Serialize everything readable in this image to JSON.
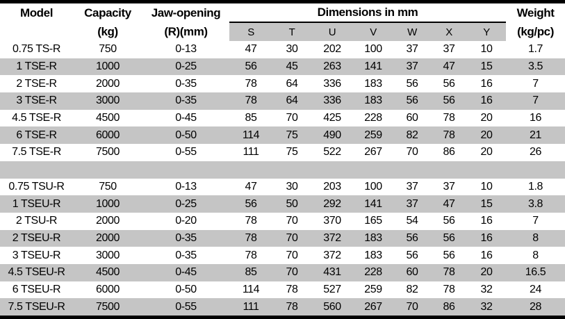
{
  "colors": {
    "stripe_gray": "#c5c5c5",
    "border_black": "#000000"
  },
  "table": {
    "headers": {
      "model": "Model",
      "capacity_line1": "Capacity",
      "capacity_line2": "(kg)",
      "jaw_line1": "Jaw-opening",
      "jaw_line2": "(R)(mm)",
      "dimensions_group": "Dimensions in mm",
      "dimension_columns": [
        "S",
        "T",
        "U",
        "V",
        "W",
        "X",
        "Y"
      ],
      "weight_line1": "Weight",
      "weight_line2": "(kg/pc)"
    },
    "rows": [
      [
        "0.75 TS-R",
        "750",
        "0-13",
        "47",
        "30",
        "202",
        "100",
        "37",
        "37",
        "10",
        "1.7"
      ],
      [
        "1 TSE-R",
        "1000",
        "0-25",
        "56",
        "45",
        "263",
        "141",
        "37",
        "47",
        "15",
        "3.5"
      ],
      [
        "2 TSE-R",
        "2000",
        "0-35",
        "78",
        "64",
        "336",
        "183",
        "56",
        "56",
        "16",
        "7"
      ],
      [
        "3 TSE-R",
        "3000",
        "0-35",
        "78",
        "64",
        "336",
        "183",
        "56",
        "56",
        "16",
        "7"
      ],
      [
        "4.5 TSE-R",
        "4500",
        "0-45",
        "85",
        "70",
        "425",
        "228",
        "60",
        "78",
        "20",
        "16"
      ],
      [
        "6 TSE-R",
        "6000",
        "0-50",
        "114",
        "75",
        "490",
        "259",
        "82",
        "78",
        "20",
        "21"
      ],
      [
        "7.5 TSE-R",
        "7500",
        "0-55",
        "111",
        "75",
        "522",
        "267",
        "70",
        "86",
        "20",
        "26"
      ],
      [
        "",
        "",
        "",
        "",
        "",
        "",
        "",
        "",
        "",
        "",
        ""
      ],
      [
        "0.75 TSU-R",
        "750",
        "0-13",
        "47",
        "30",
        "203",
        "100",
        "37",
        "37",
        "10",
        "1.8"
      ],
      [
        "1 TSEU-R",
        "1000",
        "0-25",
        "56",
        "50",
        "292",
        "141",
        "37",
        "47",
        "15",
        "3.8"
      ],
      [
        "2 TSU-R",
        "2000",
        "0-20",
        "78",
        "70",
        "370",
        "165",
        "54",
        "56",
        "16",
        "7"
      ],
      [
        "2 TSEU-R",
        "2000",
        "0-35",
        "78",
        "70",
        "372",
        "183",
        "56",
        "56",
        "16",
        "8"
      ],
      [
        "3 TSEU-R",
        "3000",
        "0-35",
        "78",
        "70",
        "372",
        "183",
        "56",
        "56",
        "16",
        "8"
      ],
      [
        "4.5 TSEU-R",
        "4500",
        "0-45",
        "85",
        "70",
        "431",
        "228",
        "60",
        "78",
        "20",
        "16.5"
      ],
      [
        "6 TSEU-R",
        "6000",
        "0-50",
        "114",
        "78",
        "527",
        "259",
        "82",
        "78",
        "32",
        "24"
      ],
      [
        "7.5 TSEU-R",
        "7500",
        "0-55",
        "111",
        "78",
        "560",
        "267",
        "70",
        "86",
        "32",
        "28"
      ]
    ]
  }
}
